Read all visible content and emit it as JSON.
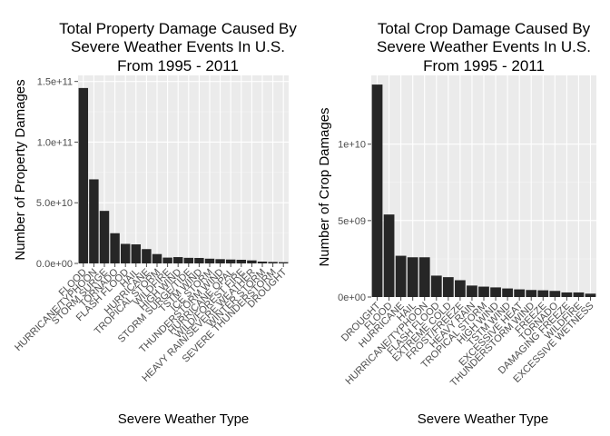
{
  "chart_data": [
    {
      "type": "bar",
      "title_lines": [
        "Total Property Damage Caused By",
        "Severe Weather Events In U.S.",
        "From 1995 - 2011"
      ],
      "xlabel": "Severe Weather Type",
      "ylabel": "Number of Property Damages",
      "ylim": [
        0,
        155000000000
      ],
      "yticks": [
        0,
        50000000000,
        100000000000,
        150000000000
      ],
      "ytick_labels": [
        "0.0e+00",
        "5.0e+10",
        "1.0e+11",
        "1.5e+11"
      ],
      "grid": true,
      "categories": [
        "FLOOD",
        "HURRICANE/TYPHOON",
        "STORM SURGE",
        "TORNADO",
        "FLASH FLOOD",
        "HAIL",
        "HURRICANE",
        "TROPICAL STORM",
        "WILDFIRE",
        "HIGH WIND",
        "STORM SURGE/TIDE",
        "TSTM WIND",
        "ICE STORM",
        "THUNDERSTORM WIND",
        "HURRICANE OPAL",
        "WILD/FOREST FIRE",
        "HEAVY RAIN/SEVERE WEATHER",
        "WINTER STORM",
        "SEVERE THUNDERSTORM",
        "DROUGHT"
      ],
      "values": [
        144600000000,
        69300000000,
        43300000000,
        24900000000,
        16100000000,
        15700000000,
        11800000000,
        7700000000,
        4800000000,
        5200000000,
        4600000000,
        4500000000,
        3900000000,
        3500000000,
        3200000000,
        3000000000,
        2500000000,
        1500000000,
        1200000000,
        1000000000
      ],
      "bar_color": "#262626",
      "panel_color": "#ebebeb"
    },
    {
      "type": "bar",
      "title_lines": [
        "Total Crop Damage Caused By",
        "Severe Weather Events In U.S.",
        "From 1995 - 2011"
      ],
      "xlabel": "Severe Weather Type",
      "ylabel": "Number of Crop Damages",
      "ylim": [
        0,
        14500000000
      ],
      "yticks": [
        0,
        5000000000,
        10000000000
      ],
      "ytick_labels": [
        "0e+00",
        "5e+09",
        "1e+10"
      ],
      "grid": true,
      "categories": [
        "DROUGHT",
        "FLOOD",
        "HURRICANE",
        "HAIL",
        "HURRICANE/TYPHOON",
        "FLASH FLOOD",
        "EXTREME COLD",
        "FROST/FREEZE",
        "HEAVY RAIN",
        "TROPICAL STORM",
        "HIGH WIND",
        "TSTM WIND",
        "EXCESSIVE HEAT",
        "THUNDERSTORM WIND",
        "FREEZE",
        "TORNADO",
        "DAMAGING FREEZE",
        "WILDFIRE",
        "EXCESSIVE WETNESS"
      ],
      "values": [
        13900000000,
        5400000000,
        2700000000,
        2600000000,
        2600000000,
        1400000000,
        1300000000,
        1100000000,
        750000000,
        680000000,
        630000000,
        560000000,
        500000000,
        460000000,
        440000000,
        400000000,
        300000000,
        300000000,
        220000000
      ],
      "bar_color": "#262626",
      "panel_color": "#ebebeb"
    }
  ]
}
